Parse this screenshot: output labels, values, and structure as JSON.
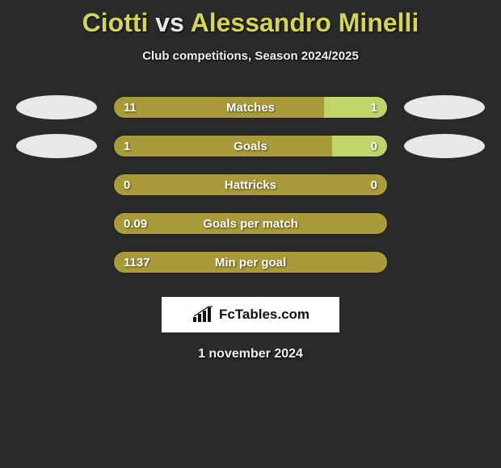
{
  "page": {
    "background_color": "#2a2a2a"
  },
  "header": {
    "player1": "Ciotti",
    "vs": "vs",
    "player2": "Alessandro Minelli",
    "subtitle": "Club competitions, Season 2024/2025",
    "title_color": "#d4d456",
    "vs_color": "#e8e8e8"
  },
  "colors": {
    "left_bar": "#a99b3a",
    "right_bar": "#bfd46a",
    "ellipse": "#e8e8e8"
  },
  "stats": [
    {
      "label": "Matches",
      "left_val": "11",
      "right_val": "1",
      "left_pct": 77,
      "right_pct": 23,
      "show_ellipses": true
    },
    {
      "label": "Goals",
      "left_val": "1",
      "right_val": "0",
      "left_pct": 80,
      "right_pct": 20,
      "show_ellipses": true
    },
    {
      "label": "Hattricks",
      "left_val": "0",
      "right_val": "0",
      "left_pct": 100,
      "right_pct": 0,
      "show_ellipses": false
    },
    {
      "label": "Goals per match",
      "left_val": "0.09",
      "right_val": "",
      "left_pct": 100,
      "right_pct": 0,
      "show_ellipses": false
    },
    {
      "label": "Min per goal",
      "left_val": "1137",
      "right_val": "",
      "left_pct": 100,
      "right_pct": 0,
      "show_ellipses": false
    }
  ],
  "footer": {
    "brand": "FcTables.com",
    "date": "1 november 2024"
  }
}
